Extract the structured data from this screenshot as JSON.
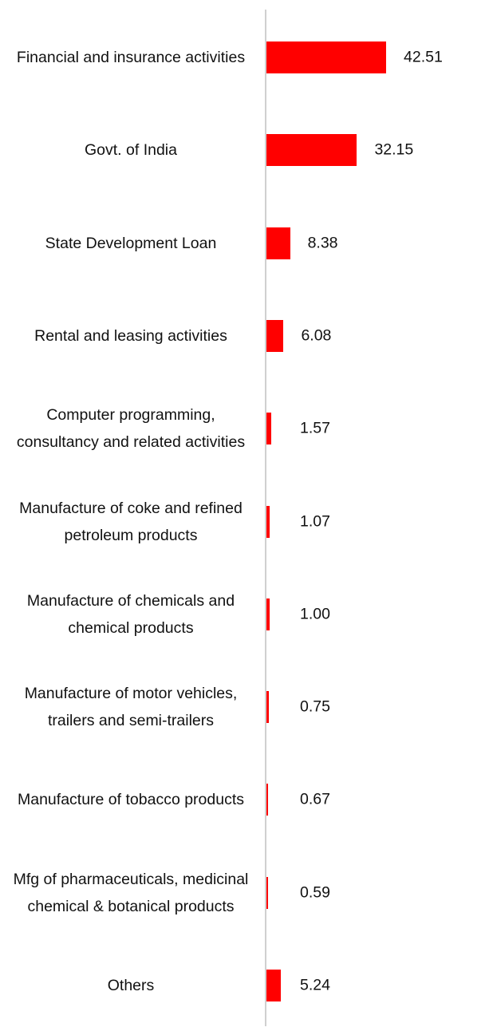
{
  "chart_data": {
    "type": "bar",
    "orientation": "horizontal",
    "color": "#ff0000",
    "categories": [
      "Financial and insurance activities",
      "Govt. of India",
      "State Development Loan",
      "Rental and leasing activities",
      "Computer programming, consultancy and related activities",
      "Manufacture of coke and refined petroleum products",
      "Manufacture of chemicals and chemical products",
      "Manufacture of motor vehicles, trailers and semi-trailers",
      "Manufacture of tobacco products",
      "Mfg of pharmaceuticals, medicinal chemical & botanical products",
      "Others"
    ],
    "values": [
      42.51,
      32.15,
      8.38,
      6.08,
      1.57,
      1.07,
      1.0,
      0.75,
      0.67,
      0.59,
      5.24
    ],
    "value_labels": [
      "42.51",
      "32.15",
      "8.38",
      "6.08",
      "1.57",
      "1.07",
      "1.00",
      "0.75",
      "0.67",
      "0.59",
      "5.24"
    ]
  }
}
